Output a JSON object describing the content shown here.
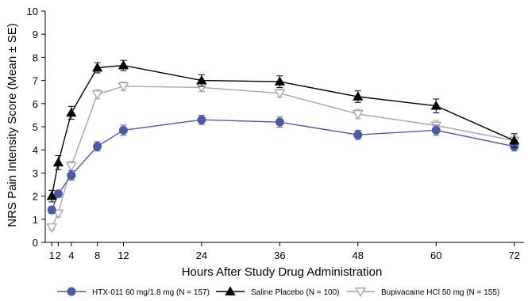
{
  "chart_data": {
    "type": "line",
    "xlabel": "Hours After Study Drug Administration",
    "ylabel": "NRS Pain Intensity Score (Mean ± SE)",
    "ylim": [
      0,
      10
    ],
    "xlim": [
      0,
      73.5
    ],
    "x_ticks": [
      1,
      2,
      4,
      8,
      12,
      24,
      36,
      48,
      60,
      72
    ],
    "y_ticks": [
      0,
      1,
      2,
      3,
      4,
      5,
      6,
      7,
      8,
      9,
      10
    ],
    "x": [
      1,
      2,
      4,
      8,
      12,
      24,
      36,
      48,
      60,
      72
    ],
    "grid": false,
    "legend_position": "bottom",
    "series": [
      {
        "name": "HTX-011 60 mg/1.8 mg (N = 157)",
        "marker": "circle",
        "color": "#4a5aa8",
        "values": [
          1.4,
          2.1,
          2.9,
          4.15,
          4.85,
          5.3,
          5.2,
          4.65,
          4.85,
          4.15
        ],
        "se": [
          0.15,
          0.15,
          0.2,
          0.2,
          0.22,
          0.2,
          0.22,
          0.2,
          0.22,
          0.2
        ]
      },
      {
        "name": "Saline Placebo (N = 100)",
        "marker": "triangle-up",
        "color": "#000000",
        "values": [
          2.0,
          3.45,
          5.6,
          7.55,
          7.65,
          7.0,
          6.95,
          6.3,
          5.9,
          4.4
        ],
        "se": [
          0.25,
          0.3,
          0.28,
          0.22,
          0.22,
          0.25,
          0.25,
          0.25,
          0.3,
          0.3
        ]
      },
      {
        "name": "Bupivacaine HCl 50 mg (N = 155)",
        "marker": "triangle-down-open",
        "color": "#a6a6a6",
        "values": [
          0.65,
          1.25,
          3.3,
          6.4,
          6.75,
          6.7,
          6.45,
          5.55,
          5.05,
          4.4
        ],
        "se": [
          0.1,
          0.15,
          0.2,
          0.2,
          0.18,
          0.18,
          0.18,
          0.2,
          0.22,
          0.22
        ]
      }
    ]
  }
}
